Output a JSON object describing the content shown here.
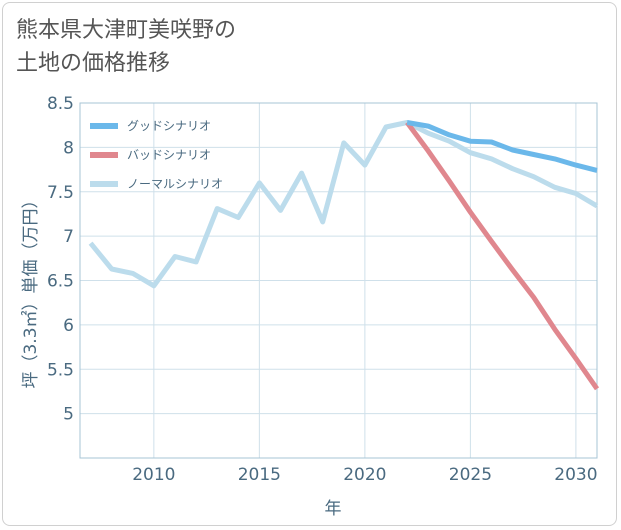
{
  "title": {
    "line1": "熊本県大津町美咲野の",
    "line2": "土地の価格推移"
  },
  "chart_data": {
    "type": "line",
    "xlabel": "年",
    "ylabel": "坪（3.3㎡）単価（万円）",
    "xlim": [
      2006.5,
      2031
    ],
    "ylim": [
      4.5,
      8.5
    ],
    "x_ticks": [
      2010,
      2015,
      2020,
      2025,
      2030
    ],
    "y_ticks": [
      5,
      5.5,
      6,
      6.5,
      7,
      7.5,
      8,
      8.5
    ],
    "grid": true,
    "legend_position": "top-left",
    "series": [
      {
        "name": "グッドシナリオ",
        "color": "#6bb8ea",
        "x": [
          2022,
          2023,
          2024,
          2025,
          2026,
          2027,
          2028,
          2029,
          2030,
          2031
        ],
        "values": [
          8.28,
          8.24,
          8.14,
          8.07,
          8.06,
          7.97,
          7.92,
          7.87,
          7.8,
          7.74
        ]
      },
      {
        "name": "バッドシナリオ",
        "color": "#e0878e",
        "x": [
          2022,
          2023,
          2024,
          2025,
          2026,
          2027,
          2028,
          2029,
          2030,
          2031
        ],
        "values": [
          8.28,
          7.96,
          7.62,
          7.27,
          6.94,
          6.62,
          6.31,
          5.95,
          5.62,
          5.28
        ]
      },
      {
        "name": "ノーマルシナリオ",
        "color": "#bcdcec",
        "x": [
          2007,
          2008,
          2009,
          2010,
          2011,
          2012,
          2013,
          2014,
          2015,
          2016,
          2017,
          2018,
          2019,
          2020,
          2021,
          2022,
          2023,
          2024,
          2025,
          2026,
          2027,
          2028,
          2029,
          2030,
          2031
        ],
        "values": [
          6.92,
          6.63,
          6.58,
          6.44,
          6.77,
          6.71,
          7.31,
          7.21,
          7.6,
          7.29,
          7.71,
          7.16,
          8.05,
          7.8,
          8.23,
          8.28,
          8.16,
          8.07,
          7.94,
          7.87,
          7.76,
          7.67,
          7.55,
          7.48,
          7.34
        ]
      }
    ]
  }
}
